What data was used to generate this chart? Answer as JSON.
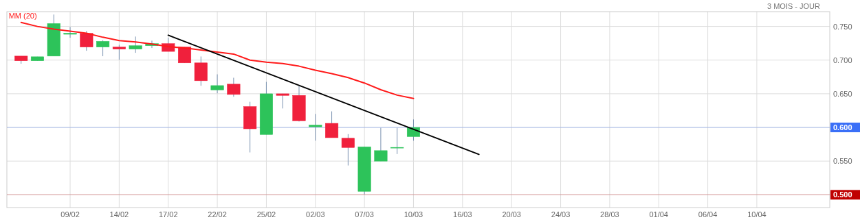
{
  "chart_data": {
    "type": "candlestick",
    "subtitle": "3 MOIS - JOUR",
    "categories": [
      null,
      null,
      null,
      "09/02",
      null,
      null,
      "14/02",
      null,
      null,
      "17/02",
      null,
      null,
      "22/02",
      null,
      null,
      "25/02",
      null,
      null,
      "02/03",
      null,
      null,
      "07/03",
      null,
      null,
      "10/03",
      null,
      null,
      "16/03",
      null,
      null,
      "20/03",
      null,
      null,
      "24/03",
      null,
      null,
      "28/03",
      null,
      null,
      "01/04",
      null,
      null,
      "06/04",
      null,
      null,
      "10/04",
      null,
      null,
      null,
      null
    ],
    "ohlc": [
      [
        0.706,
        0.706,
        0.6946,
        0.699
      ],
      [
        0.699,
        0.705,
        0.699,
        0.705
      ],
      [
        0.706,
        0.7677,
        0.706,
        0.7544
      ],
      [
        0.7384,
        0.7493,
        0.7333,
        0.74
      ],
      [
        0.7398,
        0.7432,
        0.7139,
        0.7194
      ],
      [
        0.7194,
        0.7296,
        0.7058,
        0.7279
      ],
      [
        0.7194,
        0.7228,
        0.7007,
        0.7163
      ],
      [
        0.7163,
        0.735,
        0.7109,
        0.7214
      ],
      [
        0.7214,
        0.7289,
        0.718,
        0.7245
      ],
      [
        0.7245,
        0.7333,
        0.7129,
        0.7129
      ],
      [
        0.7194,
        0.7194,
        0.6959,
        0.6959
      ],
      [
        0.6959,
        0.7054,
        0.6619,
        0.6694
      ],
      [
        0.6558,
        0.6789,
        0.6507,
        0.6622
      ],
      [
        0.6643,
        0.6738,
        0.6456,
        0.649
      ],
      [
        0.631,
        0.6381,
        0.5629,
        0.598
      ],
      [
        0.5895,
        0.6677,
        0.5895,
        0.65
      ],
      [
        0.65,
        0.65,
        0.6282,
        0.6476
      ],
      [
        0.6476,
        0.6616,
        0.6088,
        0.6099
      ],
      [
        0.601,
        0.6201,
        0.5803,
        0.6034
      ],
      [
        0.6061,
        0.6239,
        0.5848,
        0.5848
      ],
      [
        0.584,
        0.5901,
        0.5435,
        0.5702
      ],
      [
        0.5051,
        0.5711,
        0.5007,
        0.5711
      ],
      [
        0.55,
        0.5994,
        0.55,
        0.5656
      ],
      [
        0.5704,
        0.5994,
        0.5605,
        0.5704
      ],
      [
        0.5864,
        0.6119,
        0.5803,
        0.6
      ],
      null,
      null,
      null,
      null,
      null,
      null,
      null,
      null,
      null,
      null,
      null,
      null,
      null,
      null,
      null,
      null,
      null,
      null,
      null,
      null,
      null,
      null,
      null,
      null,
      null
    ],
    "colors": [
      "#f0203c",
      "#2dc35a",
      "#2dc35a",
      "#2dc35a",
      "#f0203c",
      "#2dc35a",
      "#f0203c",
      "#2dc35a",
      "#2dc35a",
      "#f0203c",
      "#f0203c",
      "#f0203c",
      "#2dc35a",
      "#f0203c",
      "#f0203c",
      "#2dc35a",
      "#f0203c",
      "#f0203c",
      "#2dc35a",
      "#f0203c",
      "#f0203c",
      "#2dc35a",
      "#2dc35a",
      "#2dc35a",
      "#2dc35a",
      null,
      null,
      null,
      null,
      null,
      null,
      null,
      null,
      null,
      null,
      null,
      null,
      null,
      null,
      null,
      null,
      null,
      null,
      null,
      null,
      null,
      null,
      null,
      null,
      null
    ],
    "series": [
      {
        "type": "line",
        "name": "MM (20)",
        "color": "#ff1a1a",
        "values": [
          0.756,
          0.75,
          0.746,
          0.743,
          0.74,
          0.734,
          0.729,
          0.727,
          0.724,
          0.72,
          0.718,
          0.715,
          0.712,
          0.709,
          0.7,
          0.697,
          0.695,
          0.691,
          0.685,
          0.68,
          0.674,
          0.666,
          0.656,
          0.648,
          0.643,
          null,
          null,
          null,
          null,
          null,
          null,
          null,
          null,
          null,
          null,
          null,
          null,
          null,
          null,
          null,
          null,
          null,
          null,
          null,
          null,
          null,
          null,
          null,
          null,
          null
        ]
      },
      {
        "type": "line",
        "color": "#000000",
        "values": [
          null,
          null,
          null,
          null,
          null,
          null,
          null,
          null,
          null,
          0.737,
          null,
          null,
          null,
          null,
          null,
          null,
          null,
          null,
          null,
          null,
          null,
          null,
          null,
          null,
          null,
          null,
          null,
          null,
          0.56,
          null,
          null,
          null,
          null,
          null,
          null,
          null,
          null,
          null,
          null,
          null,
          null,
          null,
          null,
          null,
          null,
          null,
          null,
          null,
          null,
          null
        ]
      }
    ],
    "ylim": [
      0.481,
      0.772
    ],
    "yticks": [
      {
        "value": 0.5,
        "label": "0.500"
      },
      {
        "value": 0.55,
        "label": "0.550"
      },
      {
        "value": 0.6,
        "label": "0.600"
      },
      {
        "value": 0.65,
        "label": "0.650"
      },
      {
        "value": 0.7,
        "label": "0.700"
      },
      {
        "value": 0.75,
        "label": "0.750"
      }
    ],
    "ref_lines": [
      {
        "axis": "y",
        "value": 0.6,
        "color": "#3a6ff7"
      },
      {
        "axis": "y",
        "value": 0.5,
        "color": "#c00000"
      }
    ],
    "grid": true
  }
}
